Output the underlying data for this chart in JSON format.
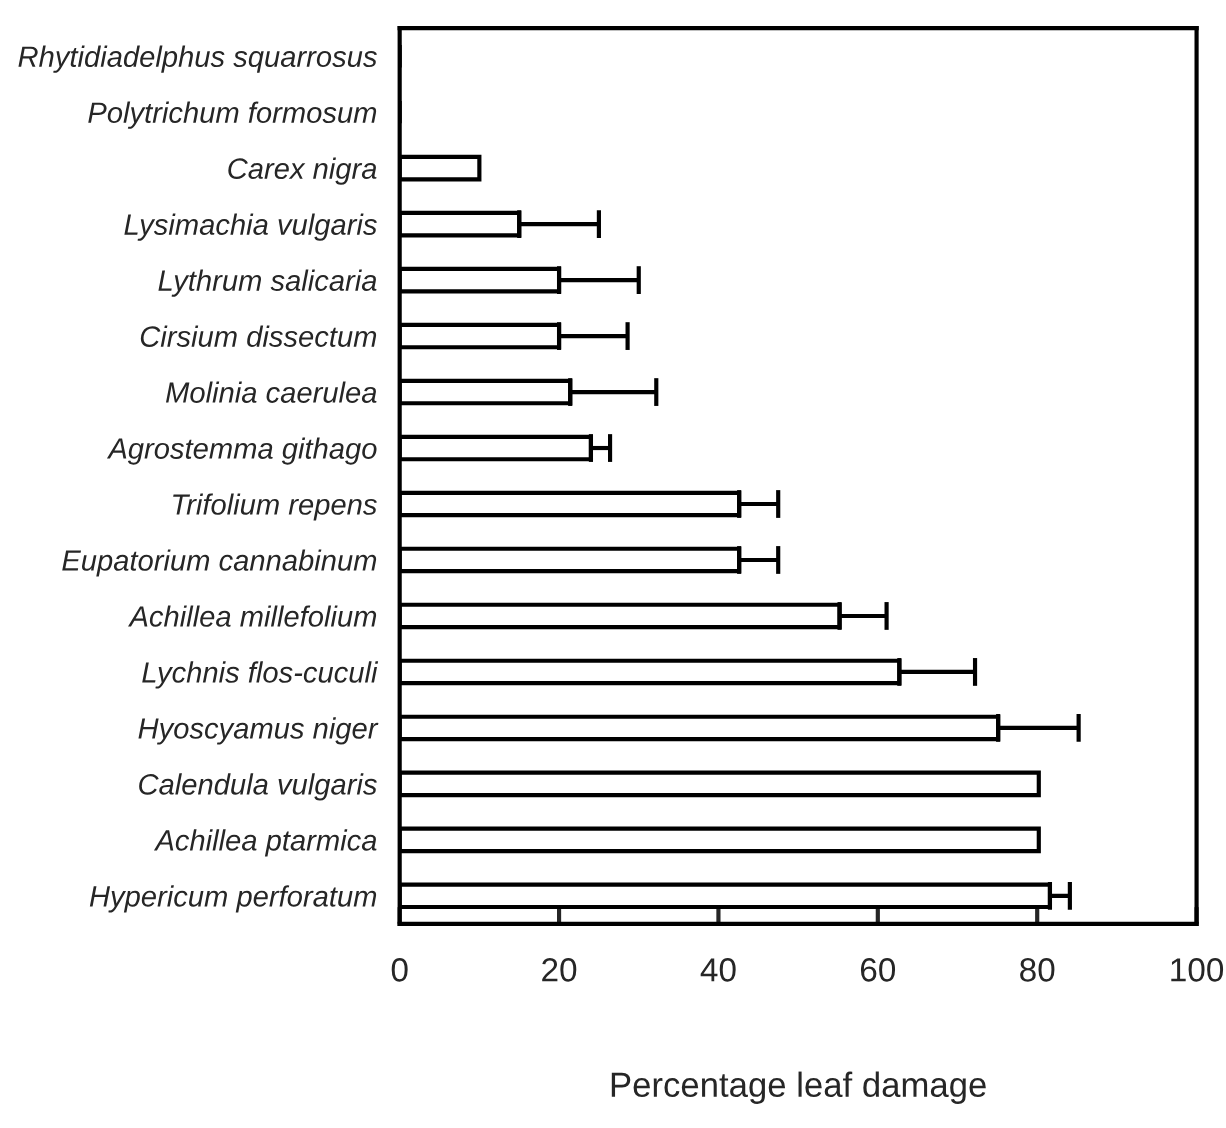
{
  "chart_data": {
    "type": "bar",
    "orientation": "horizontal",
    "xlabel": "Percentage leaf damage",
    "categories": [
      "Rhytidiadelphus squarrosus",
      "Polytrichum formosum",
      "Carex nigra",
      "Lysimachia vulgaris",
      "Lythrum salicaria",
      "Cirsium dissectum",
      "Molinia caerulea",
      "Agrostemma githago",
      "Trifolium repens",
      "Eupatorium cannabinum",
      "Achillea millefolium",
      "Lychnis flos-cuculi",
      "Hyoscyamus niger",
      "Calendula vulgaris",
      "Achillea ptarmica",
      "Hypericum perforatum"
    ],
    "values": [
      0,
      0,
      10,
      15,
      20,
      20,
      21.4,
      24,
      42.6,
      42.6,
      55.2,
      62.7,
      75.1,
      80.2,
      80.2,
      81.6
    ],
    "errors": [
      null,
      null,
      null,
      10,
      10,
      8.6,
      10.8,
      2.4,
      4.9,
      4.9,
      5.9,
      9.5,
      10.1,
      null,
      null,
      2.5
    ],
    "color": "#ffffff",
    "xlim": [
      0,
      100
    ],
    "xticks": [
      0,
      20,
      40,
      60,
      80,
      100
    ],
    "grid": false,
    "legend": false
  }
}
